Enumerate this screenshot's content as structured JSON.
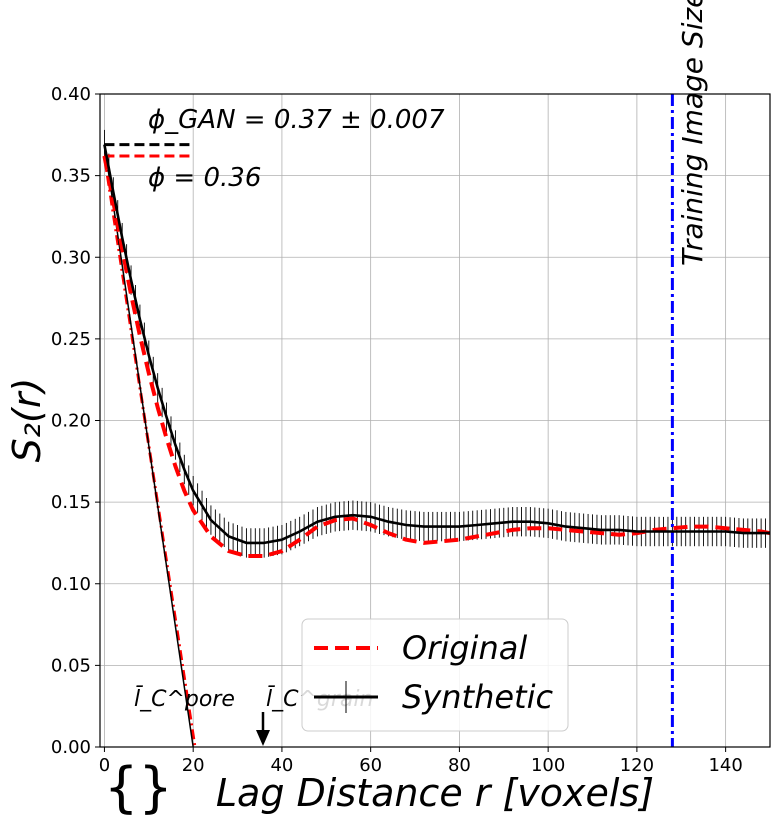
{
  "chart_data": {
    "type": "line",
    "xlabel": "Lag Distance r [voxels]",
    "ylabel": "S₂(r)",
    "xlim": [
      -1,
      150
    ],
    "ylim": [
      0.0,
      0.4
    ],
    "xticks": [
      0,
      20,
      40,
      60,
      80,
      100,
      120,
      140
    ],
    "yticks": [
      0.0,
      0.05,
      0.1,
      0.15,
      0.2,
      0.25,
      0.3,
      0.35,
      0.4
    ],
    "grid": true,
    "legend_position": "bottom-center",
    "series": [
      {
        "name": "Original",
        "color": "#ff0000",
        "style": "dashed",
        "x": [
          0,
          2,
          4,
          6,
          8,
          10,
          12,
          14,
          16,
          18,
          20,
          24,
          28,
          32,
          36,
          40,
          44,
          48,
          52,
          56,
          60,
          64,
          68,
          72,
          76,
          80,
          84,
          88,
          92,
          96,
          100,
          104,
          108,
          112,
          116,
          120,
          124,
          128,
          132,
          136,
          140,
          144,
          148,
          150
        ],
        "y": [
          0.362,
          0.334,
          0.305,
          0.277,
          0.252,
          0.229,
          0.208,
          0.189,
          0.172,
          0.157,
          0.145,
          0.129,
          0.12,
          0.117,
          0.117,
          0.12,
          0.127,
          0.135,
          0.139,
          0.14,
          0.136,
          0.131,
          0.127,
          0.125,
          0.126,
          0.127,
          0.129,
          0.131,
          0.133,
          0.134,
          0.134,
          0.133,
          0.132,
          0.131,
          0.13,
          0.131,
          0.133,
          0.134,
          0.135,
          0.135,
          0.134,
          0.133,
          0.132,
          0.131
        ]
      },
      {
        "name": "Synthetic",
        "color": "#000000",
        "style": "solid",
        "errorbar": 0.009,
        "x": [
          0,
          2,
          4,
          6,
          8,
          10,
          12,
          14,
          16,
          18,
          20,
          24,
          28,
          32,
          36,
          40,
          44,
          48,
          52,
          56,
          60,
          64,
          68,
          72,
          76,
          80,
          84,
          88,
          92,
          96,
          100,
          104,
          108,
          112,
          116,
          120,
          124,
          128,
          132,
          136,
          140,
          144,
          148,
          150
        ],
        "y": [
          0.369,
          0.34,
          0.312,
          0.286,
          0.262,
          0.24,
          0.22,
          0.202,
          0.185,
          0.17,
          0.157,
          0.139,
          0.129,
          0.125,
          0.125,
          0.127,
          0.132,
          0.138,
          0.141,
          0.142,
          0.141,
          0.138,
          0.136,
          0.135,
          0.135,
          0.135,
          0.136,
          0.137,
          0.138,
          0.138,
          0.137,
          0.135,
          0.134,
          0.133,
          0.133,
          0.132,
          0.132,
          0.132,
          0.132,
          0.132,
          0.132,
          0.131,
          0.131,
          0.131
        ]
      }
    ],
    "reference_lines": {
      "phi_gan": {
        "y": 0.369,
        "x": [
          0,
          20
        ],
        "color": "#000000",
        "style": "dashed"
      },
      "phi": {
        "y": 0.362,
        "x": [
          0,
          20
        ],
        "color": "#ff0000",
        "style": "dashed"
      },
      "training_image_size": {
        "x": 128,
        "color": "#0000ff",
        "style": "dashdot"
      },
      "tangent_original": {
        "x": [
          0,
          20.4
        ],
        "y": [
          0.362,
          0.0
        ],
        "color": "#ff0000",
        "style": "dashdot"
      },
      "tangent_synthetic": {
        "x": [
          0,
          20.0
        ],
        "y": [
          0.369,
          0.0
        ],
        "color": "#000000",
        "style": "solid"
      }
    },
    "annotations": {
      "phi_gan": "ϕ_GAN = 0.37 ± 0.007",
      "phi": "ϕ = 0.36",
      "lc_pore": "l̄_C^pore",
      "lc_grain": "l̄_C^grain",
      "training_size": "Training Image Size",
      "brace": "{}"
    }
  }
}
